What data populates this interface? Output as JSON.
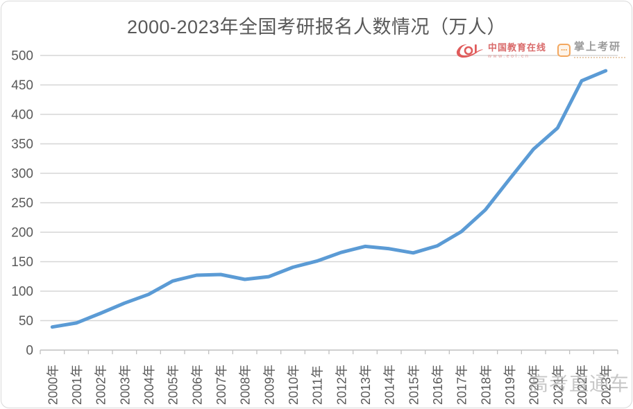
{
  "title": "2000-2023年全国考研报名人数情况（万人）",
  "logos": {
    "eol": {
      "brand": "eol",
      "name": "中国教育在线",
      "url": "www.eol.cn"
    },
    "palm_kaoyan": {
      "name": "掌上考研"
    }
  },
  "watermark": "高考直通车",
  "chart_data": {
    "type": "line",
    "title": "2000-2023年全国考研报名人数情况（万人）",
    "unit": "万人",
    "categories": [
      "2000年",
      "2001年",
      "2002年",
      "2003年",
      "2004年",
      "2005年",
      "2006年",
      "2007年",
      "2008年",
      "2009年",
      "2010年",
      "2011年",
      "2012年",
      "2013年",
      "2014年",
      "2015年",
      "2016年",
      "2017年",
      "2018年",
      "2019年",
      "2020年",
      "2021年",
      "2022年",
      "2023年"
    ],
    "values": [
      39.2,
      46,
      62.4,
      79.7,
      94.5,
      117.2,
      127.1,
      128.2,
      120,
      124.6,
      140.6,
      151.1,
      165.6,
      176,
      172,
      164.9,
      177,
      201,
      238,
      290,
      341,
      377,
      457,
      474
    ],
    "ylim": [
      0,
      500
    ],
    "ytick_interval": 50,
    "grid": true,
    "legend": "none",
    "line_color": "#5B9BD5",
    "grid_color": "#D6D6D6",
    "axis_color": "#C0C0C0",
    "label_color": "#595959"
  }
}
